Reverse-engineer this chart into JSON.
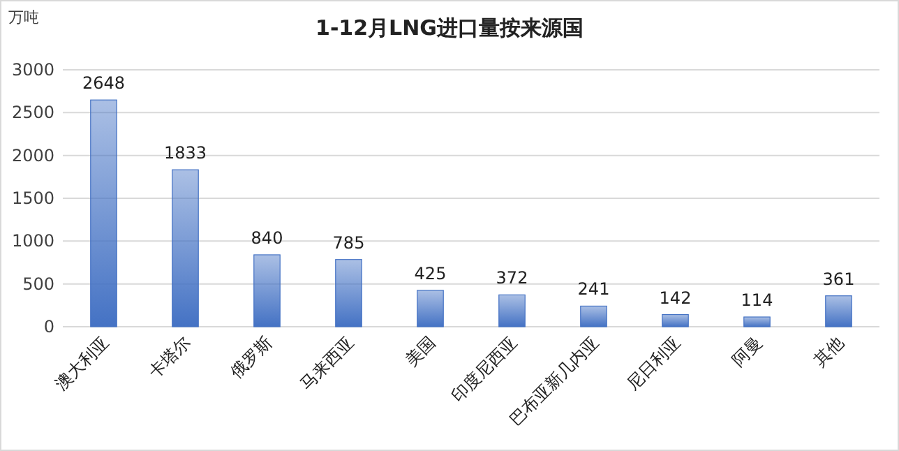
{
  "chart_data": {
    "type": "bar",
    "title": "1-12月LNG进口量按来源国",
    "ylabel": "万吨",
    "categories": [
      "澳大利亚",
      "卡塔尔",
      "俄罗斯",
      "马来西亚",
      "美国",
      "印度尼西亚",
      "巴布亚新几内亚",
      "尼日利亚",
      "阿曼",
      "其他"
    ],
    "values": [
      2648,
      1833,
      840,
      785,
      425,
      372,
      241,
      142,
      114,
      361
    ],
    "color": "#4472c4",
    "ylim": [
      0,
      3000
    ],
    "yticks": [
      0,
      500,
      1000,
      1500,
      2000,
      2500,
      3000
    ],
    "grid": "y",
    "data_labels": true
  }
}
